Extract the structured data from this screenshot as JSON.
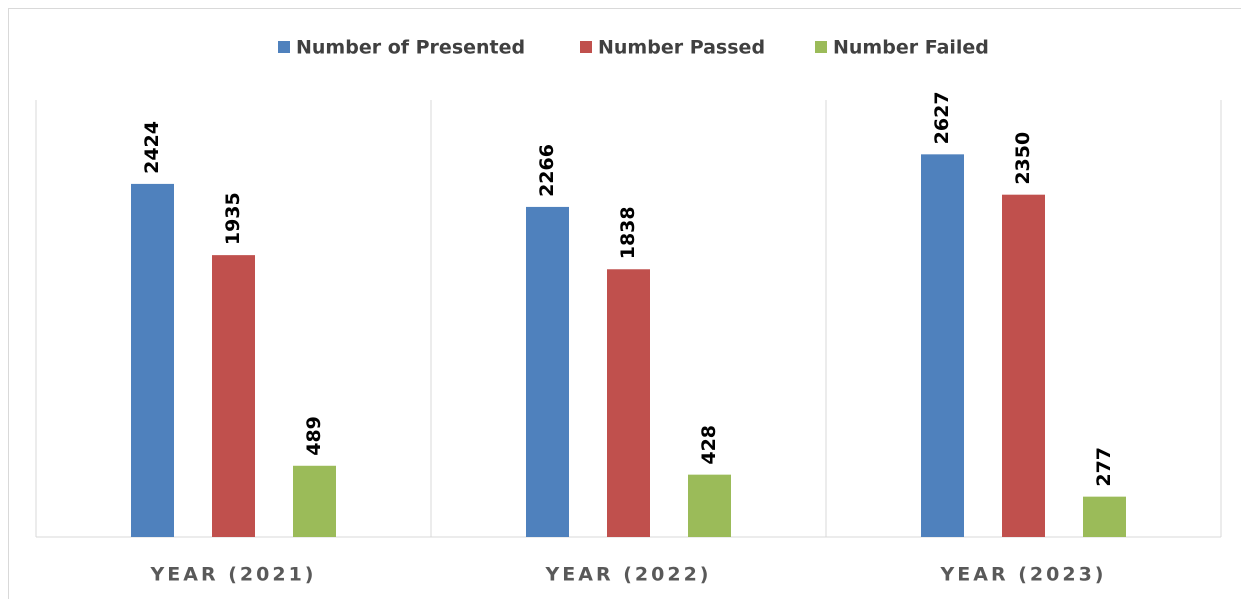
{
  "chart_data": {
    "type": "bar",
    "categories": [
      "YEAR (2021)",
      "YEAR (2022)",
      "YEAR (2023)"
    ],
    "series": [
      {
        "name": "Number of Presented",
        "color": "#4f81bd",
        "values": [
          2424,
          2266,
          2627
        ]
      },
      {
        "name": "Number Passed",
        "color": "#c0504d",
        "values": [
          1935,
          1838,
          2350
        ]
      },
      {
        "name": "Number Failed",
        "color": "#9bbb59",
        "values": [
          489,
          428,
          277
        ]
      }
    ],
    "ylim": [
      0,
      3000
    ],
    "legend": "top"
  }
}
